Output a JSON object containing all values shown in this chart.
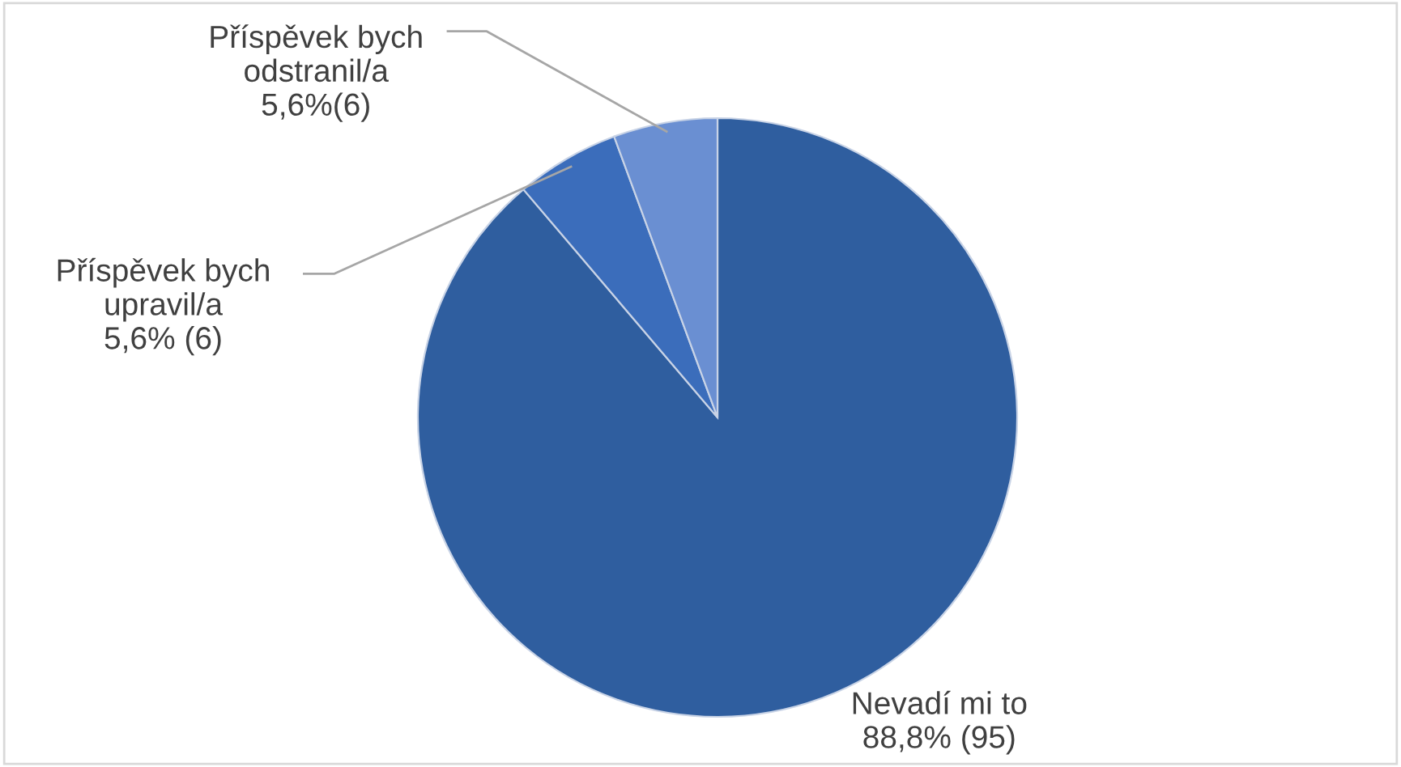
{
  "chart_data": {
    "type": "pie",
    "categories": [
      "Nevadí mi to",
      "Příspěvek bych upravil/a",
      "Příspěvek bych odstranil/a"
    ],
    "values": [
      95,
      6,
      6
    ],
    "value_labels": [
      "88,8% (95)",
      "5,6% (6)",
      "5,6%(6)"
    ],
    "colors": [
      "#2f5e9f",
      "#3b6dbb",
      "#6a8fd2"
    ],
    "legend": false
  }
}
